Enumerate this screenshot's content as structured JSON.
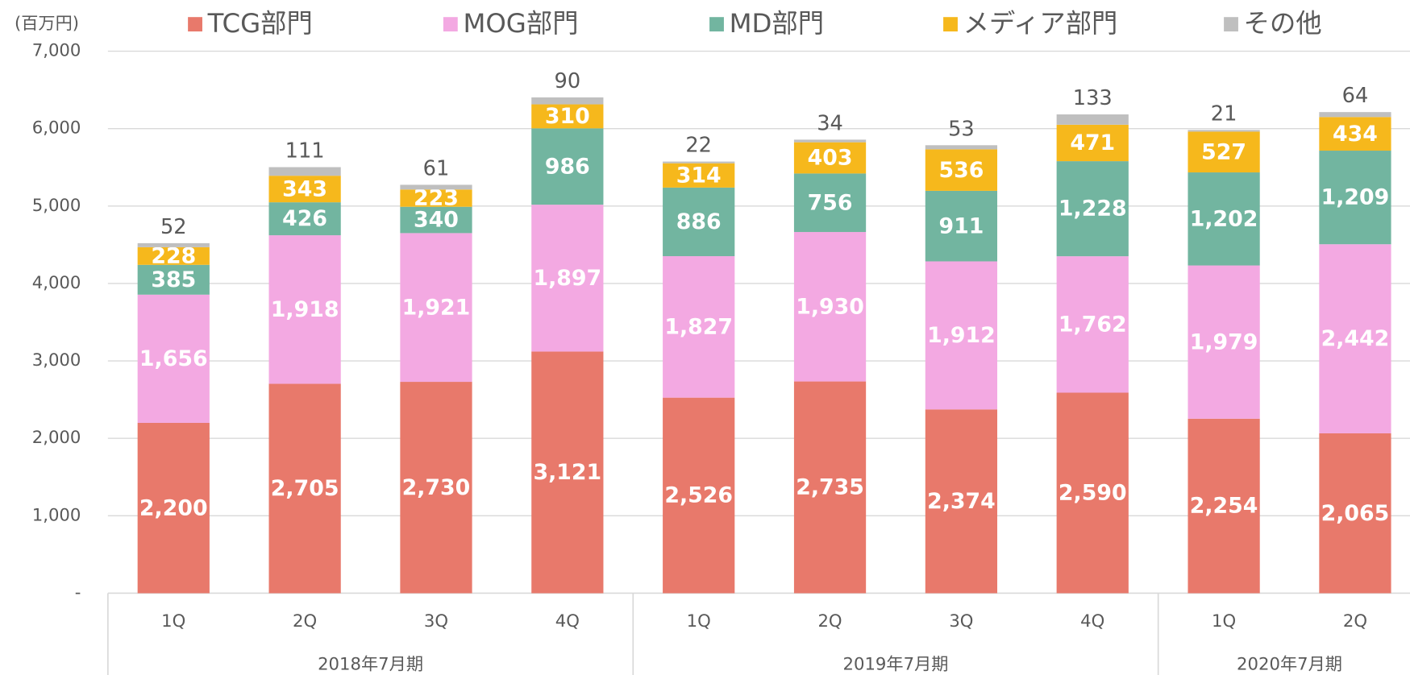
{
  "chart_data": {
    "type": "stacked-bar",
    "unit_label": "(百万円)",
    "categories": [
      "1Q",
      "2Q",
      "3Q",
      "4Q",
      "1Q",
      "2Q",
      "3Q",
      "4Q",
      "1Q",
      "2Q"
    ],
    "groups": [
      {
        "label": "2018年7月期",
        "span": 4
      },
      {
        "label": "2019年7月期",
        "span": 4
      },
      {
        "label": "2020年7月期",
        "span": 2
      }
    ],
    "series": [
      {
        "name": "TCG部門",
        "color": "#e8796b",
        "label_color": "#ffffff",
        "values": [
          2200,
          2705,
          2730,
          3121,
          2526,
          2735,
          2374,
          2590,
          2254,
          2065
        ],
        "value_labels": [
          "2,200",
          "2,705",
          "2,730",
          "3,121",
          "2,526",
          "2,735",
          "2,374",
          "2,590",
          "2,254",
          "2,065"
        ]
      },
      {
        "name": "MOG部門",
        "color": "#f3a9e2",
        "label_color": "#ffffff",
        "values": [
          1656,
          1918,
          1921,
          1897,
          1827,
          1930,
          1912,
          1762,
          1979,
          2442
        ],
        "value_labels": [
          "1,656",
          "1,918",
          "1,921",
          "1,897",
          "1,827",
          "1,930",
          "1,912",
          "1,762",
          "1,979",
          "2,442"
        ]
      },
      {
        "name": "MD部門",
        "color": "#72b5a0",
        "label_color": "#ffffff",
        "values": [
          385,
          426,
          340,
          986,
          886,
          756,
          911,
          1228,
          1202,
          1209
        ],
        "value_labels": [
          "385",
          "426",
          "340",
          "986",
          "886",
          "756",
          "911",
          "1,228",
          "1,202",
          "1,209"
        ]
      },
      {
        "name": "メディア部門",
        "color": "#f6b81c",
        "label_color": "#ffffff",
        "values": [
          228,
          343,
          223,
          310,
          314,
          403,
          536,
          471,
          527,
          434
        ]
      },
      {
        "name": "その他",
        "color": "#bfbfbf",
        "label_color": "#595959",
        "values": [
          52,
          111,
          61,
          90,
          22,
          34,
          53,
          133,
          21,
          64
        ]
      }
    ],
    "ylim": [
      0,
      7000
    ],
    "yticks": [
      {
        "value": 0,
        "label": "-"
      },
      {
        "value": 1000,
        "label": "1,000"
      },
      {
        "value": 2000,
        "label": "2,000"
      },
      {
        "value": 3000,
        "label": "3,000"
      },
      {
        "value": 4000,
        "label": "4,000"
      },
      {
        "value": 5000,
        "label": "5,000"
      },
      {
        "value": 6000,
        "label": "6,000"
      },
      {
        "value": 7000,
        "label": "7,000"
      }
    ],
    "grid": true
  }
}
